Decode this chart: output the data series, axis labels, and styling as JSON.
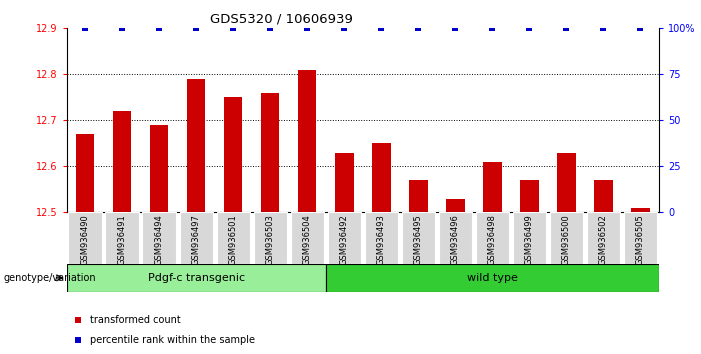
{
  "title": "GDS5320 / 10606939",
  "categories": [
    "GSM936490",
    "GSM936491",
    "GSM936494",
    "GSM936497",
    "GSM936501",
    "GSM936503",
    "GSM936504",
    "GSM936492",
    "GSM936493",
    "GSM936495",
    "GSM936496",
    "GSM936498",
    "GSM936499",
    "GSM936500",
    "GSM936502",
    "GSM936505"
  ],
  "bar_values": [
    12.67,
    12.72,
    12.69,
    12.79,
    12.75,
    12.76,
    12.81,
    12.63,
    12.65,
    12.57,
    12.53,
    12.61,
    12.57,
    12.63,
    12.57,
    12.51
  ],
  "percentile_values": [
    100,
    100,
    100,
    100,
    100,
    100,
    100,
    100,
    100,
    100,
    100,
    100,
    100,
    100,
    100,
    100
  ],
  "bar_color": "#cc0000",
  "percentile_color": "#0000cc",
  "ylim_left": [
    12.5,
    12.9
  ],
  "ylim_right": [
    0,
    100
  ],
  "yticks_left": [
    12.5,
    12.6,
    12.7,
    12.8,
    12.9
  ],
  "yticks_right": [
    0,
    25,
    50,
    75,
    100
  ],
  "ytick_labels_right": [
    "0",
    "25",
    "50",
    "75",
    "100%"
  ],
  "grid_lines": [
    12.6,
    12.7,
    12.8
  ],
  "group1_label": "Pdgf-c transgenic",
  "group2_label": "wild type",
  "group1_count": 7,
  "group2_count": 9,
  "genotype_label": "genotype/variation",
  "legend_bar_label": "transformed count",
  "legend_pct_label": "percentile rank within the sample",
  "group1_color": "#99ee99",
  "group2_color": "#33cc33",
  "bar_bottom": 12.5,
  "xticklabel_bg": "#d8d8d8"
}
